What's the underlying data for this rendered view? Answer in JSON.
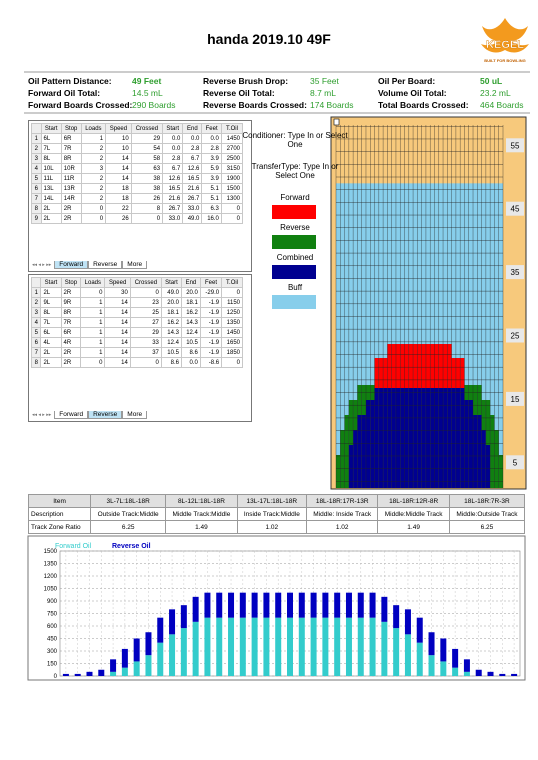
{
  "header": {
    "title": "handa 2019.10 49F",
    "logo": "KEGEL",
    "logo_tagline": "BUILT FOR BOWLING"
  },
  "info": [
    [
      {
        "label": "Oil Pattern Distance:",
        "value": "49 Feet"
      },
      {
        "label": "Forward Oil Total:",
        "value": "14.5 mL"
      },
      {
        "label": "Forward Boards Crossed:",
        "value": "290 Boards"
      }
    ],
    [
      {
        "label": "Reverse Brush Drop:",
        "value": "35 Feet"
      },
      {
        "label": "Reverse Oil Total:",
        "value": "8.7 mL"
      },
      {
        "label": "Reverse Boards Crossed:",
        "value": "174 Boards"
      }
    ],
    [
      {
        "label": "Oil Per Board:",
        "value": "50 uL"
      },
      {
        "label": "Volume Oil Total:",
        "value": "23.2 mL"
      },
      {
        "label": "Total Boards Crossed:",
        "value": "464 Boards"
      }
    ]
  ],
  "forward_table": {
    "headers": [
      "Start",
      "Stop",
      "Loads",
      "Speed",
      "Crossed",
      "Start",
      "End",
      "Feet",
      "T.Oil"
    ],
    "rows": [
      [
        "1",
        "6L",
        "6R",
        "1",
        "10",
        "29",
        "0.0",
        "0.0",
        "0.0",
        "1450"
      ],
      [
        "2",
        "7L",
        "7R",
        "2",
        "10",
        "54",
        "0.0",
        "2.8",
        "2.8",
        "2700"
      ],
      [
        "3",
        "8L",
        "8R",
        "2",
        "14",
        "58",
        "2.8",
        "6.7",
        "3.9",
        "2500"
      ],
      [
        "4",
        "10L",
        "10R",
        "3",
        "14",
        "63",
        "6.7",
        "12.6",
        "5.9",
        "3150"
      ],
      [
        "5",
        "11L",
        "11R",
        "2",
        "14",
        "38",
        "12.6",
        "16.5",
        "3.9",
        "1900"
      ],
      [
        "6",
        "13L",
        "13R",
        "2",
        "18",
        "38",
        "16.5",
        "21.6",
        "5.1",
        "1500"
      ],
      [
        "7",
        "14L",
        "14R",
        "2",
        "18",
        "26",
        "21.6",
        "26.7",
        "5.1",
        "1300"
      ],
      [
        "8",
        "2L",
        "2R",
        "0",
        "22",
        "8",
        "26.7",
        "33.0",
        "6.3",
        "0"
      ],
      [
        "9",
        "2L",
        "2R",
        "0",
        "26",
        "0",
        "33.0",
        "49.0",
        "16.0",
        "0"
      ]
    ]
  },
  "reverse_table": {
    "headers": [
      "Start",
      "Stop",
      "Loads",
      "Speed",
      "Crossed",
      "Start",
      "End",
      "Feet",
      "T.Oil"
    ],
    "rows": [
      [
        "1",
        "2L",
        "2R",
        "0",
        "30",
        "0",
        "49.0",
        "20.0",
        "-29.0",
        "0"
      ],
      [
        "2",
        "9L",
        "9R",
        "1",
        "14",
        "23",
        "20.0",
        "18.1",
        "-1.9",
        "1150"
      ],
      [
        "3",
        "8L",
        "8R",
        "1",
        "14",
        "25",
        "18.1",
        "16.2",
        "-1.9",
        "1250"
      ],
      [
        "4",
        "7L",
        "7R",
        "1",
        "14",
        "27",
        "16.2",
        "14.3",
        "-1.9",
        "1350"
      ],
      [
        "5",
        "6L",
        "6R",
        "1",
        "14",
        "29",
        "14.3",
        "12.4",
        "-1.9",
        "1450"
      ],
      [
        "6",
        "4L",
        "4R",
        "1",
        "14",
        "33",
        "12.4",
        "10.5",
        "-1.9",
        "1650"
      ],
      [
        "7",
        "2L",
        "2R",
        "1",
        "14",
        "37",
        "10.5",
        "8.6",
        "-1.9",
        "1850"
      ],
      [
        "8",
        "2L",
        "2R",
        "0",
        "14",
        "0",
        "8.6",
        "0.0",
        "-8.6",
        "0"
      ]
    ]
  },
  "tabs": [
    "Forward",
    "Reverse",
    "More"
  ],
  "legend": {
    "conditioner": "Conditioner: Type In or Select One",
    "transfer": "TransferType: Type In or Select One",
    "items": [
      {
        "label": "Forward",
        "color": "#ff0000"
      },
      {
        "label": "Reverse",
        "color": "#108010"
      },
      {
        "label": "Combined",
        "color": "#000090"
      },
      {
        "label": "Buff",
        "color": "#87ceeb"
      }
    ]
  },
  "lane": {
    "ruler": [
      55,
      45,
      35,
      25,
      15,
      5
    ]
  },
  "zones": {
    "headers": [
      "Item",
      "3L-7L:18L-18R",
      "8L-12L:18L-18R",
      "13L-17L:18L-18R",
      "18L-18R:17R-13R",
      "18L-18R:12R-8R",
      "18L-18R:7R-3R"
    ],
    "rows": [
      [
        "Description",
        "Outside Track:Middle",
        "Middle Track:Middle",
        "Inside Track:Middle",
        "Middle: Inside Track",
        "Middle:Middle Track",
        "Middle:Outside Track"
      ],
      [
        "Track Zone Ratio",
        "6.25",
        "1.49",
        "1.02",
        "1.02",
        "1.49",
        "6.25"
      ]
    ]
  },
  "chart_data": {
    "type": "bar",
    "stacked": true,
    "grid": true,
    "ylim": [
      0,
      1500
    ],
    "yticks": [
      0,
      150,
      300,
      450,
      600,
      750,
      900,
      1050,
      1200,
      1350,
      1500
    ],
    "series": [
      {
        "name": "Forward Oil",
        "color": "#33cccc",
        "values": [
          0,
          0,
          0,
          0,
          50,
          100,
          175,
          250,
          400,
          500,
          575,
          650,
          700,
          700,
          700,
          700,
          700,
          700,
          700,
          700,
          700,
          700,
          700,
          700,
          700,
          700,
          700,
          650,
          575,
          500,
          400,
          250,
          175,
          100,
          50,
          0,
          0,
          0,
          0
        ]
      },
      {
        "name": "Reverse Oil",
        "color": "#0000c0",
        "values": [
          25,
          25,
          50,
          75,
          150,
          225,
          275,
          275,
          300,
          300,
          275,
          300,
          300,
          300,
          300,
          300,
          300,
          300,
          300,
          300,
          300,
          300,
          300,
          300,
          300,
          300,
          300,
          300,
          275,
          300,
          300,
          275,
          275,
          225,
          150,
          75,
          50,
          25,
          25
        ]
      }
    ]
  }
}
